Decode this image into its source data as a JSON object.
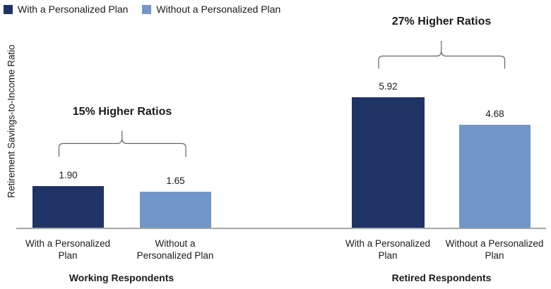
{
  "legend": {
    "items": [
      {
        "label": "With a Personalized Plan",
        "color": "#1F3364"
      },
      {
        "label": "Without a Personalized Plan",
        "color": "#7296C8"
      }
    ]
  },
  "y_axis_label": "Retirement Savings-to-Income Ratio",
  "chart_data": {
    "type": "bar",
    "categories": [
      "Working Respondents",
      "Retired Respondents"
    ],
    "series": [
      {
        "name": "With a Personalized Plan",
        "color": "#1F3364",
        "values": [
          1.9,
          5.92
        ]
      },
      {
        "name": "Without a Personalized Plan",
        "color": "#7296C8",
        "values": [
          1.65,
          4.68
        ]
      }
    ],
    "ylabel": "Retirement Savings-to-Income Ratio",
    "ylim": [
      0,
      6.5
    ],
    "grid": false,
    "legend_position": "top-left",
    "annotations": [
      {
        "text": "15% Higher Ratios",
        "category": "Working Respondents"
      },
      {
        "text": "27% Higher Ratios",
        "category": "Retired Respondents"
      }
    ],
    "axis_line_color": "#A6A6A6",
    "bracket_color": "#646464"
  },
  "groups": [
    {
      "title": "Working Respondents",
      "annotation": "15% Higher Ratios",
      "bars": [
        {
          "value_label": "1.90",
          "label_line1": "With a Personalized",
          "label_line2": "Plan"
        },
        {
          "value_label": "1.65",
          "label_line1": "Without a",
          "label_line2": "Personalized Plan"
        }
      ]
    },
    {
      "title": "Retired Respondents",
      "annotation": "27% Higher Ratios",
      "bars": [
        {
          "value_label": "5.92",
          "label_line1": "With a Personalized",
          "label_line2": "Plan"
        },
        {
          "value_label": "4.68",
          "label_line1": "Without a Personalized",
          "label_line2": "Plan"
        }
      ]
    }
  ]
}
